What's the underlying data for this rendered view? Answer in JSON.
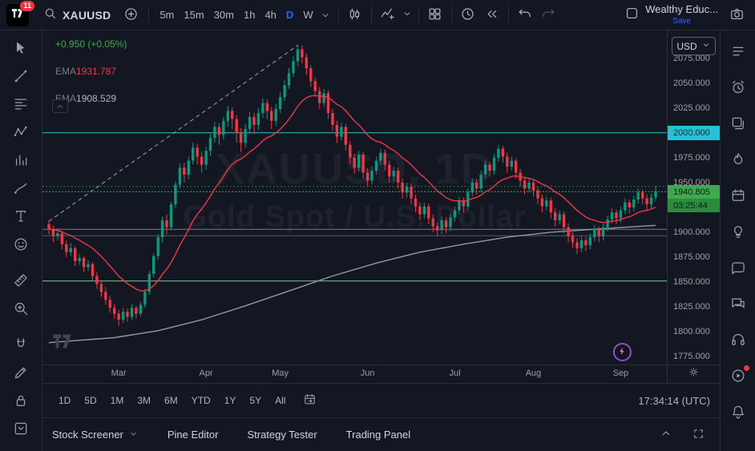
{
  "colors": {
    "up": "#089981",
    "down": "#f23645",
    "accent_blue": "#2962ff",
    "cyan_badge": "#22c3d6",
    "last_badge": "#3fa94f",
    "last_badge_dark": "#2b8c3e",
    "change_green": "#3fa94f"
  },
  "header": {
    "notification_count": "11",
    "symbol": "XAUUSD",
    "intervals": [
      "5m",
      "15m",
      "30m",
      "1h",
      "4h",
      "D",
      "W"
    ],
    "active_interval": "D",
    "tool_icons": [
      "sep",
      "candles-icon",
      "sep",
      "indicators-icon",
      "caret-icon",
      "sep",
      "layout-grid-icon",
      "sep",
      "alert-clock-icon",
      "replay-icon",
      "sep",
      "undo-icon",
      "redo-icon"
    ],
    "layout_name": "Wealthy Educ...",
    "save_label": "Save"
  },
  "legend": {
    "change": "+0.950 (+0.05%)",
    "indicators": [
      {
        "label": "EMA",
        "value": "1931.787",
        "color": "#f23645"
      },
      {
        "label": "EMA",
        "value": "1908.529",
        "color": "#b2b5be"
      }
    ]
  },
  "watermark": {
    "line1": "XAUUSD, 1D",
    "line2": "Gold Spot / U.S. Dollar"
  },
  "price_scale": {
    "currency": "USD",
    "labels": [
      2075,
      2050,
      2025,
      2000,
      1975,
      1950,
      1925,
      1900,
      1875,
      1850,
      1825,
      1800,
      1775
    ],
    "level_badge": {
      "text": "2000.000",
      "price": 2000
    },
    "last_badge": {
      "price_text": "1940.805",
      "countdown": "03:25:44"
    }
  },
  "time_scale": {
    "ticks": [
      {
        "label": "Mar",
        "i": 16
      },
      {
        "label": "Apr",
        "i": 36
      },
      {
        "label": "May",
        "i": 53
      },
      {
        "label": "Jun",
        "i": 73
      },
      {
        "label": "Jul",
        "i": 93
      },
      {
        "label": "Aug",
        "i": 111
      },
      {
        "label": "Sep",
        "i": 131
      }
    ]
  },
  "bottom_bar": {
    "ranges": [
      "1D",
      "5D",
      "1M",
      "3M",
      "6M",
      "YTD",
      "1Y",
      "5Y",
      "All"
    ],
    "clock": "17:34:14 (UTC)"
  },
  "footer": {
    "items": [
      "Stock Screener",
      "Pine Editor",
      "Strategy Tester",
      "Trading Panel"
    ]
  },
  "left_toolbar": {
    "icons": [
      "cursor-icon",
      "trendline-icon",
      "fib-retracement-icon",
      "xabcd-pattern-icon",
      "forecast-icon",
      "brush-icon",
      "text-icon",
      "emoji-icon",
      "measure-icon",
      "zoom-in-icon",
      "magnet-icon",
      "edit-icon",
      "lock-icon",
      "object-tree-icon"
    ]
  },
  "right_sidebar": {
    "icons": [
      "watchlist-icon",
      "alerts-icon",
      "news-icon",
      "hotlists-icon",
      "calendar-icon",
      "ideas-icon",
      "minds-icon",
      "chat-icon",
      "support-icon",
      "streams-icon",
      "notifications-icon"
    ],
    "dot_on": "streams-icon"
  },
  "chart_data": {
    "type": "candlestick",
    "title": "XAUUSD 1D Gold Spot / U.S. Dollar",
    "ylim": [
      1767,
      2103
    ],
    "last_price": 1940.805,
    "ema_fast_period": 18,
    "colors": {
      "up": "#089981",
      "down": "#f23645",
      "ema_fast": "#f23645",
      "ma_slow": "#9598a1"
    },
    "x_ticks": [
      {
        "label": "Mar",
        "i": 16
      },
      {
        "label": "Apr",
        "i": 36
      },
      {
        "label": "May",
        "i": 53
      },
      {
        "label": "Jun",
        "i": 73
      },
      {
        "label": "Jul",
        "i": 93
      },
      {
        "label": "Aug",
        "i": 111
      },
      {
        "label": "Sep",
        "i": 131
      }
    ],
    "h_lines": [
      {
        "price": 2000,
        "color": "#24c7d9",
        "dash": ""
      },
      {
        "price": 1946,
        "color": "#0f9a5a",
        "dash": "1.5,3"
      },
      {
        "price": 1903,
        "color": "#787b86",
        "dash": ""
      },
      {
        "price": 1896.5,
        "color": "#565a64",
        "dash": ""
      },
      {
        "price": 1851,
        "color": "#83c78f",
        "dash": ""
      }
    ],
    "trendline": {
      "from": [
        0,
        1911
      ],
      "to": [
        57,
        2088
      ],
      "color": "#8b8f99",
      "dash": "5,4"
    },
    "ma_slow_points": [
      [
        0,
        1789
      ],
      [
        15,
        1794
      ],
      [
        25,
        1801
      ],
      [
        35,
        1812
      ],
      [
        45,
        1826
      ],
      [
        55,
        1841
      ],
      [
        65,
        1856
      ],
      [
        75,
        1869
      ],
      [
        85,
        1880
      ],
      [
        95,
        1888
      ],
      [
        105,
        1895
      ],
      [
        115,
        1900
      ],
      [
        125,
        1903
      ],
      [
        132,
        1905
      ],
      [
        139,
        1907
      ]
    ],
    "candles": [
      [
        1908,
        1912,
        1898,
        1903
      ],
      [
        1903,
        1907,
        1890,
        1896
      ],
      [
        1896,
        1904,
        1892,
        1899
      ],
      [
        1899,
        1901,
        1883,
        1888
      ],
      [
        1888,
        1892,
        1875,
        1880
      ],
      [
        1880,
        1889,
        1876,
        1884
      ],
      [
        1884,
        1886,
        1866,
        1871
      ],
      [
        1871,
        1878,
        1867,
        1874
      ],
      [
        1874,
        1876,
        1860,
        1865
      ],
      [
        1865,
        1872,
        1861,
        1868
      ],
      [
        1868,
        1870,
        1851,
        1856
      ],
      [
        1856,
        1860,
        1843,
        1848
      ],
      [
        1848,
        1852,
        1835,
        1840
      ],
      [
        1840,
        1845,
        1827,
        1832
      ],
      [
        1832,
        1836,
        1819,
        1824
      ],
      [
        1824,
        1828,
        1813,
        1818
      ],
      [
        1818,
        1822,
        1806,
        1812
      ],
      [
        1812,
        1824,
        1809,
        1820
      ],
      [
        1820,
        1823,
        1810,
        1815
      ],
      [
        1815,
        1828,
        1812,
        1824
      ],
      [
        1824,
        1826,
        1813,
        1818
      ],
      [
        1818,
        1830,
        1815,
        1827
      ],
      [
        1827,
        1843,
        1824,
        1840
      ],
      [
        1840,
        1861,
        1837,
        1858
      ],
      [
        1858,
        1879,
        1855,
        1876
      ],
      [
        1876,
        1898,
        1872,
        1895
      ],
      [
        1895,
        1916,
        1890,
        1912
      ],
      [
        1912,
        1918,
        1898,
        1905
      ],
      [
        1905,
        1931,
        1902,
        1928
      ],
      [
        1928,
        1951,
        1924,
        1948
      ],
      [
        1948,
        1969,
        1944,
        1965
      ],
      [
        1965,
        1970,
        1950,
        1958
      ],
      [
        1958,
        1976,
        1953,
        1972
      ],
      [
        1972,
        1990,
        1968,
        1985
      ],
      [
        1985,
        1989,
        1968,
        1976
      ],
      [
        1976,
        1981,
        1960,
        1968
      ],
      [
        1968,
        1986,
        1963,
        1982
      ],
      [
        1982,
        1999,
        1977,
        1995
      ],
      [
        1995,
        2011,
        1990,
        2006
      ],
      [
        2006,
        2010,
        1988,
        1998
      ],
      [
        1998,
        2016,
        1993,
        2012
      ],
      [
        2012,
        2027,
        2006,
        2022
      ],
      [
        2022,
        2026,
        2004,
        2014
      ],
      [
        2014,
        2018,
        1990,
        2000
      ],
      [
        2000,
        2005,
        1981,
        1990
      ],
      [
        1990,
        2009,
        1985,
        2004
      ],
      [
        2004,
        2021,
        1999,
        2016
      ],
      [
        2016,
        2020,
        1999,
        2008
      ],
      [
        2008,
        2025,
        2003,
        2020
      ],
      [
        2020,
        2035,
        2015,
        2030
      ],
      [
        2030,
        2034,
        2014,
        2022
      ],
      [
        2022,
        2026,
        2004,
        2012
      ],
      [
        2012,
        2029,
        2007,
        2024
      ],
      [
        2024,
        2041,
        2020,
        2036
      ],
      [
        2036,
        2053,
        2032,
        2048
      ],
      [
        2048,
        2065,
        2044,
        2060
      ],
      [
        2060,
        2077,
        2056,
        2072
      ],
      [
        2072,
        2089,
        2067,
        2084
      ],
      [
        2084,
        2088,
        2070,
        2076
      ],
      [
        2076,
        2080,
        2058,
        2065
      ],
      [
        2065,
        2068,
        2046,
        2052
      ],
      [
        2052,
        2056,
        2036,
        2042
      ],
      [
        2042,
        2046,
        2024,
        2030
      ],
      [
        2030,
        2044,
        2026,
        2040
      ],
      [
        2040,
        2043,
        2014,
        2020
      ],
      [
        2020,
        2024,
        2002,
        2008
      ],
      [
        2008,
        2012,
        1990,
        1996
      ],
      [
        1996,
        2010,
        1992,
        2006
      ],
      [
        2006,
        2009,
        1982,
        1988
      ],
      [
        1988,
        1992,
        1969,
        1975
      ],
      [
        1975,
        1979,
        1959,
        1965
      ],
      [
        1965,
        1982,
        1961,
        1978
      ],
      [
        1978,
        1981,
        1954,
        1960
      ],
      [
        1960,
        1964,
        1946,
        1952
      ],
      [
        1952,
        1966,
        1948,
        1962
      ],
      [
        1962,
        1976,
        1958,
        1972
      ],
      [
        1972,
        1984,
        1968,
        1980
      ],
      [
        1980,
        1983,
        1962,
        1968
      ],
      [
        1968,
        1972,
        1950,
        1956
      ],
      [
        1956,
        1966,
        1951,
        1962
      ],
      [
        1962,
        1965,
        1944,
        1950
      ],
      [
        1950,
        1954,
        1934,
        1940
      ],
      [
        1940,
        1950,
        1935,
        1946
      ],
      [
        1946,
        1949,
        1928,
        1934
      ],
      [
        1934,
        1938,
        1920,
        1926
      ],
      [
        1926,
        1930,
        1912,
        1918
      ],
      [
        1918,
        1930,
        1914,
        1926
      ],
      [
        1926,
        1929,
        1908,
        1914
      ],
      [
        1914,
        1918,
        1900,
        1906
      ],
      [
        1906,
        1910,
        1896,
        1902
      ],
      [
        1902,
        1916,
        1898,
        1912
      ],
      [
        1912,
        1915,
        1899,
        1905
      ],
      [
        1905,
        1919,
        1901,
        1915
      ],
      [
        1915,
        1926,
        1911,
        1922
      ],
      [
        1922,
        1936,
        1918,
        1932
      ],
      [
        1932,
        1935,
        1920,
        1926
      ],
      [
        1926,
        1944,
        1922,
        1940
      ],
      [
        1940,
        1954,
        1936,
        1950
      ],
      [
        1950,
        1953,
        1938,
        1944
      ],
      [
        1944,
        1962,
        1940,
        1958
      ],
      [
        1958,
        1972,
        1954,
        1968
      ],
      [
        1968,
        1971,
        1956,
        1962
      ],
      [
        1962,
        1979,
        1958,
        1975
      ],
      [
        1975,
        1988,
        1971,
        1984
      ],
      [
        1984,
        1987,
        1970,
        1976
      ],
      [
        1976,
        1980,
        1960,
        1966
      ],
      [
        1966,
        1976,
        1962,
        1972
      ],
      [
        1972,
        1975,
        1954,
        1960
      ],
      [
        1960,
        1964,
        1946,
        1952
      ],
      [
        1952,
        1956,
        1938,
        1944
      ],
      [
        1944,
        1954,
        1940,
        1950
      ],
      [
        1950,
        1953,
        1936,
        1942
      ],
      [
        1942,
        1946,
        1928,
        1934
      ],
      [
        1934,
        1938,
        1920,
        1926
      ],
      [
        1926,
        1936,
        1922,
        1932
      ],
      [
        1932,
        1935,
        1914,
        1920
      ],
      [
        1920,
        1924,
        1906,
        1912
      ],
      [
        1912,
        1922,
        1908,
        1918
      ],
      [
        1918,
        1921,
        1899,
        1905
      ],
      [
        1905,
        1909,
        1890,
        1896
      ],
      [
        1896,
        1900,
        1884,
        1890
      ],
      [
        1890,
        1894,
        1878,
        1884
      ],
      [
        1884,
        1896,
        1880,
        1892
      ],
      [
        1892,
        1895,
        1881,
        1887
      ],
      [
        1887,
        1899,
        1883,
        1895
      ],
      [
        1895,
        1907,
        1891,
        1903
      ],
      [
        1903,
        1906,
        1890,
        1896
      ],
      [
        1896,
        1909,
        1892,
        1905
      ],
      [
        1905,
        1917,
        1901,
        1913
      ],
      [
        1913,
        1924,
        1909,
        1920
      ],
      [
        1920,
        1923,
        1908,
        1914
      ],
      [
        1914,
        1926,
        1910,
        1922
      ],
      [
        1922,
        1934,
        1918,
        1930
      ],
      [
        1930,
        1933,
        1919,
        1925
      ],
      [
        1925,
        1937,
        1921,
        1933
      ],
      [
        1933,
        1944,
        1929,
        1940
      ],
      [
        1940,
        1943,
        1928,
        1934
      ],
      [
        1934,
        1938,
        1922,
        1928
      ],
      [
        1928,
        1939,
        1924,
        1935
      ],
      [
        1935,
        1947,
        1931,
        1941
      ]
    ]
  }
}
